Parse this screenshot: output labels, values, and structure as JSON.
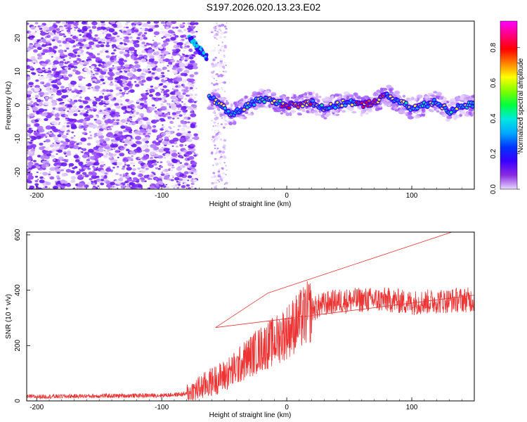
{
  "title": "S197.2026.020.13.23.E02",
  "chart_data": [
    {
      "type": "heatmap",
      "xlabel": "Height of straight line (km)",
      "ylabel": "Frequency (Hz)",
      "xlim": [
        -208,
        150
      ],
      "ylim": [
        -25,
        25
      ],
      "xticks": [
        -200,
        -100,
        0,
        100
      ],
      "yticks": [
        -20,
        -10,
        0,
        10,
        20
      ],
      "colorbar": {
        "label": "Normalized spectral amplitude",
        "range": [
          0,
          0.95
        ],
        "ticks": [
          "0.0",
          "0.2",
          "0.4",
          "0.6",
          "0.8"
        ],
        "colors": [
          "#e8d9ff",
          "#8a2be2",
          "#3a00ff",
          "#0033ff",
          "#00a8ff",
          "#00e8e0",
          "#00ff40",
          "#7fff00",
          "#ffff00",
          "#ff8000",
          "#ff0000",
          "#ff0080",
          "#ff00ff"
        ]
      },
      "ridge": [
        {
          "x": -78,
          "y": 20
        },
        {
          "x": -72,
          "y": 18
        },
        {
          "x": -66,
          "y": 15
        },
        {
          "x": -62,
          "y": 2
        },
        {
          "x": -55,
          "y": 1
        },
        {
          "x": -45,
          "y": -3
        },
        {
          "x": -35,
          "y": -1
        },
        {
          "x": -20,
          "y": 2
        },
        {
          "x": -10,
          "y": 1
        },
        {
          "x": 0,
          "y": 0
        },
        {
          "x": 10,
          "y": 0
        },
        {
          "x": 20,
          "y": 1
        },
        {
          "x": 30,
          "y": -1
        },
        {
          "x": 40,
          "y": 0
        },
        {
          "x": 50,
          "y": 1
        },
        {
          "x": 60,
          "y": 0
        },
        {
          "x": 70,
          "y": 1
        },
        {
          "x": 80,
          "y": 3
        },
        {
          "x": 90,
          "y": 1
        },
        {
          "x": 100,
          "y": -1
        },
        {
          "x": 110,
          "y": 0
        },
        {
          "x": 120,
          "y": 1
        },
        {
          "x": 130,
          "y": -2
        },
        {
          "x": 140,
          "y": 0
        },
        {
          "x": 150,
          "y": 0
        }
      ]
    },
    {
      "type": "line",
      "xlabel": "Height of straight line (km)",
      "ylabel": "SNR (10 * v/v)",
      "xlim": [
        -208,
        150
      ],
      "ylim": [
        0,
        610
      ],
      "xticks": [
        -200,
        -100,
        0,
        100
      ],
      "yticks": [
        0,
        200,
        400,
        600
      ],
      "color": "#ee3333",
      "trend": [
        {
          "x": -208,
          "y": 15
        },
        {
          "x": -150,
          "y": 18
        },
        {
          "x": -100,
          "y": 20
        },
        {
          "x": -80,
          "y": 25
        },
        {
          "x": -70,
          "y": 45
        },
        {
          "x": -60,
          "y": 70
        },
        {
          "x": -50,
          "y": 90
        },
        {
          "x": -40,
          "y": 120
        },
        {
          "x": -30,
          "y": 160
        },
        {
          "x": -20,
          "y": 190
        },
        {
          "x": -10,
          "y": 215
        },
        {
          "x": 0,
          "y": 250
        },
        {
          "x": 10,
          "y": 290
        },
        {
          "x": 20,
          "y": 330
        },
        {
          "x": 30,
          "y": 350
        },
        {
          "x": 40,
          "y": 360
        },
        {
          "x": 60,
          "y": 365
        },
        {
          "x": 80,
          "y": 365
        },
        {
          "x": 100,
          "y": 355
        },
        {
          "x": 120,
          "y": 360
        },
        {
          "x": 140,
          "y": 365
        },
        {
          "x": 150,
          "y": 365
        }
      ],
      "annotations": [
        {
          "x": -57,
          "y": 265
        },
        {
          "x": -15,
          "y": 390
        },
        {
          "x": 132,
          "y": 610
        }
      ]
    }
  ]
}
